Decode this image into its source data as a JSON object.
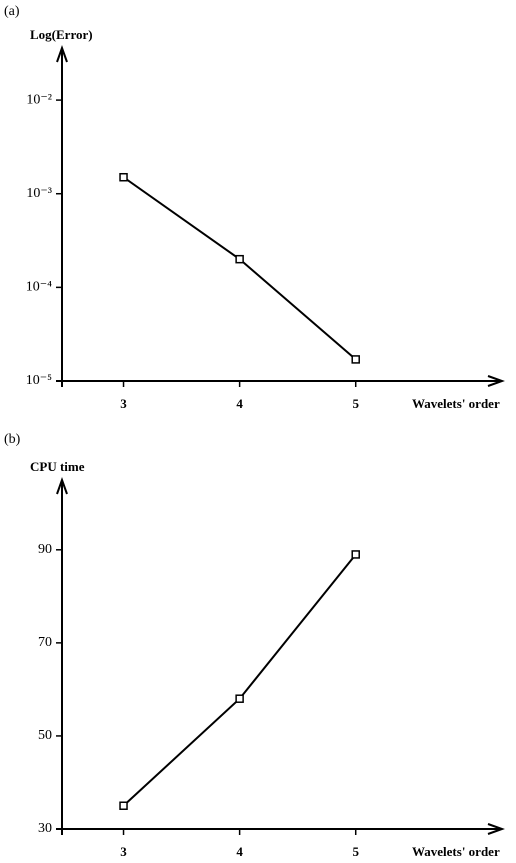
{
  "chart_data": [
    {
      "type": "line",
      "title": "(a)",
      "y_label": "Log(Error)",
      "x_label": "Wavelets' order",
      "x": [
        3,
        4,
        5
      ],
      "values": [
        0.0015,
        0.0002,
        1.7e-05
      ],
      "color": "#000000",
      "log_y": true,
      "xlim": [
        2.47,
        6.26
      ],
      "xticks": [
        3,
        4,
        5
      ],
      "ylim": [
        1e-05,
        0.036
      ],
      "yticks": [
        {
          "value": 0.01,
          "label": "10⁻²"
        },
        {
          "value": 0.001,
          "label": "10⁻³"
        },
        {
          "value": 0.0001,
          "label": "10⁻⁴"
        },
        {
          "value": 1e-05,
          "label": "10⁻⁵"
        }
      ]
    },
    {
      "type": "line",
      "title": "(b)",
      "y_label": "CPU time",
      "x_label": "Wavelets' order",
      "x": [
        3,
        4,
        5
      ],
      "values": [
        35,
        58,
        89
      ],
      "color": "#000000",
      "log_y": false,
      "xlim": [
        2.47,
        6.26
      ],
      "xticks": [
        3,
        4,
        5
      ],
      "ylim": [
        30,
        105
      ],
      "yticks": [
        30,
        50,
        70,
        90
      ]
    }
  ]
}
